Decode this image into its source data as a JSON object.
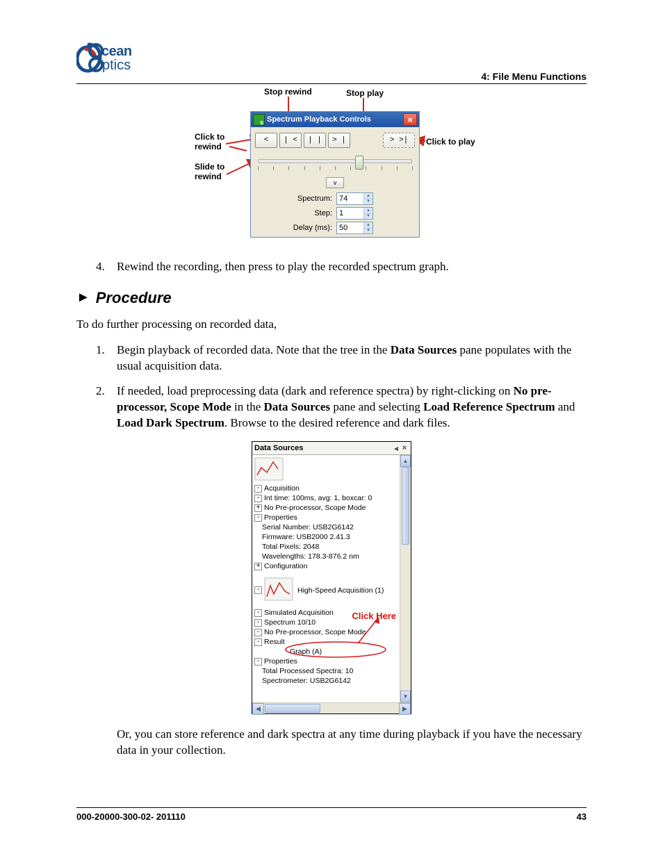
{
  "header": {
    "logo_line1": "cean",
    "logo_line2": "ptics",
    "section": "4: File Menu Functions"
  },
  "footer": {
    "docnum": "000-20000-300-02- 201110",
    "pagenum": "43"
  },
  "fig1": {
    "title": "Spectrum Playback Controls",
    "callouts": {
      "stop_rewind": "Stop rewind",
      "stop_play": "Stop play",
      "click_rewind": "Click to\nrewind",
      "slide_rewind": "Slide to\nrewind",
      "click_play": "Click to play"
    },
    "buttons": {
      "rewind": "<",
      "step_back": "| <",
      "pause": "| |",
      "step_fwd": "> |",
      "play": ">   >|"
    },
    "collapse_glyph": "v",
    "slider": {
      "thumb_pct": 64,
      "ticks": 11
    },
    "fields": {
      "spectrum": {
        "label": "Spectrum:",
        "value": "74"
      },
      "step": {
        "label": "Step:",
        "value": "1"
      },
      "delay": {
        "label": "Delay (ms):",
        "value": "50"
      }
    },
    "colors": {
      "window_border": "#6b8bbd",
      "window_bg": "#ece9d8",
      "titlebar_top": "#3b6fb7",
      "titlebar_bottom": "#1f52a6",
      "close_top": "#f08070",
      "close_bottom": "#d8432a",
      "input_border": "#7f9db9",
      "spin_arrow_bg": "#dbe6f4",
      "arrow_red": "#cc2a1f"
    }
  },
  "text": {
    "step4_num": "4.",
    "step4": "Rewind the recording, then press to play the recorded spectrum graph.",
    "proc_arrow": "►",
    "proc": "Procedure",
    "intro": "To do further processing on recorded data,",
    "li1_num": "1.",
    "li1_a": "Begin playback of recorded data. Note that the tree in the ",
    "li1_b": "Data Sources",
    "li1_c": " pane populates with the usual acquisition data.",
    "li2_num": "2.",
    "li2_a": "If needed, load preprocessing data (dark and reference spectra) by right-clicking on ",
    "li2_b": "No pre-processor, Scope Mode",
    "li2_c": " in the ",
    "li2_d": "Data Sources",
    "li2_e": " pane and selecting ",
    "li2_f": "Load Reference Spectrum",
    "li2_g": " and ",
    "li2_h": "Load Dark Spectrum",
    "li2_i": ". Browse to the desired reference and dark files.",
    "after_fig2": "Or, you can store reference and dark spectra at any time during playback if you have the necessary data in your collection."
  },
  "fig2": {
    "header": "Data Sources",
    "click_here": "Click Here",
    "colors": {
      "header_bg": "#f3f3f0",
      "scroll_trough": "#e9e7d8",
      "scroll_grad_a": "#dfe6f6",
      "scroll_grad_b": "#b8c9e8",
      "scroll_border": "#8fa9ce",
      "click_here": "#d11a1a",
      "circle": "#d11a1a",
      "thumb_line": "#c2312b"
    },
    "rows": [
      {
        "indent": 1,
        "pm": "-",
        "text": "Acquisition"
      },
      {
        "indent": 2,
        "pm": "-",
        "text": "Int time: 100ms, avg: 1, boxcar: 0"
      },
      {
        "indent": 3,
        "pm": "+",
        "text": "No Pre-processor, Scope Mode"
      },
      {
        "indent": 1,
        "pm": "-",
        "text": "Properties"
      },
      {
        "indent": 3,
        "pm": "",
        "text": "Serial Number: USB2G6142"
      },
      {
        "indent": 3,
        "pm": "",
        "text": "Firmware: USB2000 2.41.3"
      },
      {
        "indent": 3,
        "pm": "",
        "text": "Total Pixels: 2048"
      },
      {
        "indent": 3,
        "pm": "",
        "text": "Wavelengths: 178.3-876.2 nm"
      },
      {
        "indent": 2,
        "pm": "+",
        "text": "Configuration"
      }
    ],
    "hsa": "High-Speed Acquisition (1)",
    "rows2": [
      {
        "indent": 1,
        "pm": "-",
        "text": "Simulated Acquisition"
      },
      {
        "indent": 2,
        "pm": "-",
        "text": "Spectrum 10/10"
      },
      {
        "indent": 3,
        "pm": "-",
        "text": "No Pre-processor, Scope Mode",
        "circled": true
      },
      {
        "indent": 4,
        "pm": "-",
        "text": "Result"
      },
      {
        "indent": 4,
        "pm": "",
        "text": "Graph (A)",
        "pad_left": true
      },
      {
        "indent": 1,
        "pm": "-",
        "text": "Properties"
      },
      {
        "indent": 3,
        "pm": "",
        "text": "Total Processed Spectra: 10"
      },
      {
        "indent": 3,
        "pm": "",
        "text": "Spectrometer: USB2G6142"
      }
    ]
  }
}
